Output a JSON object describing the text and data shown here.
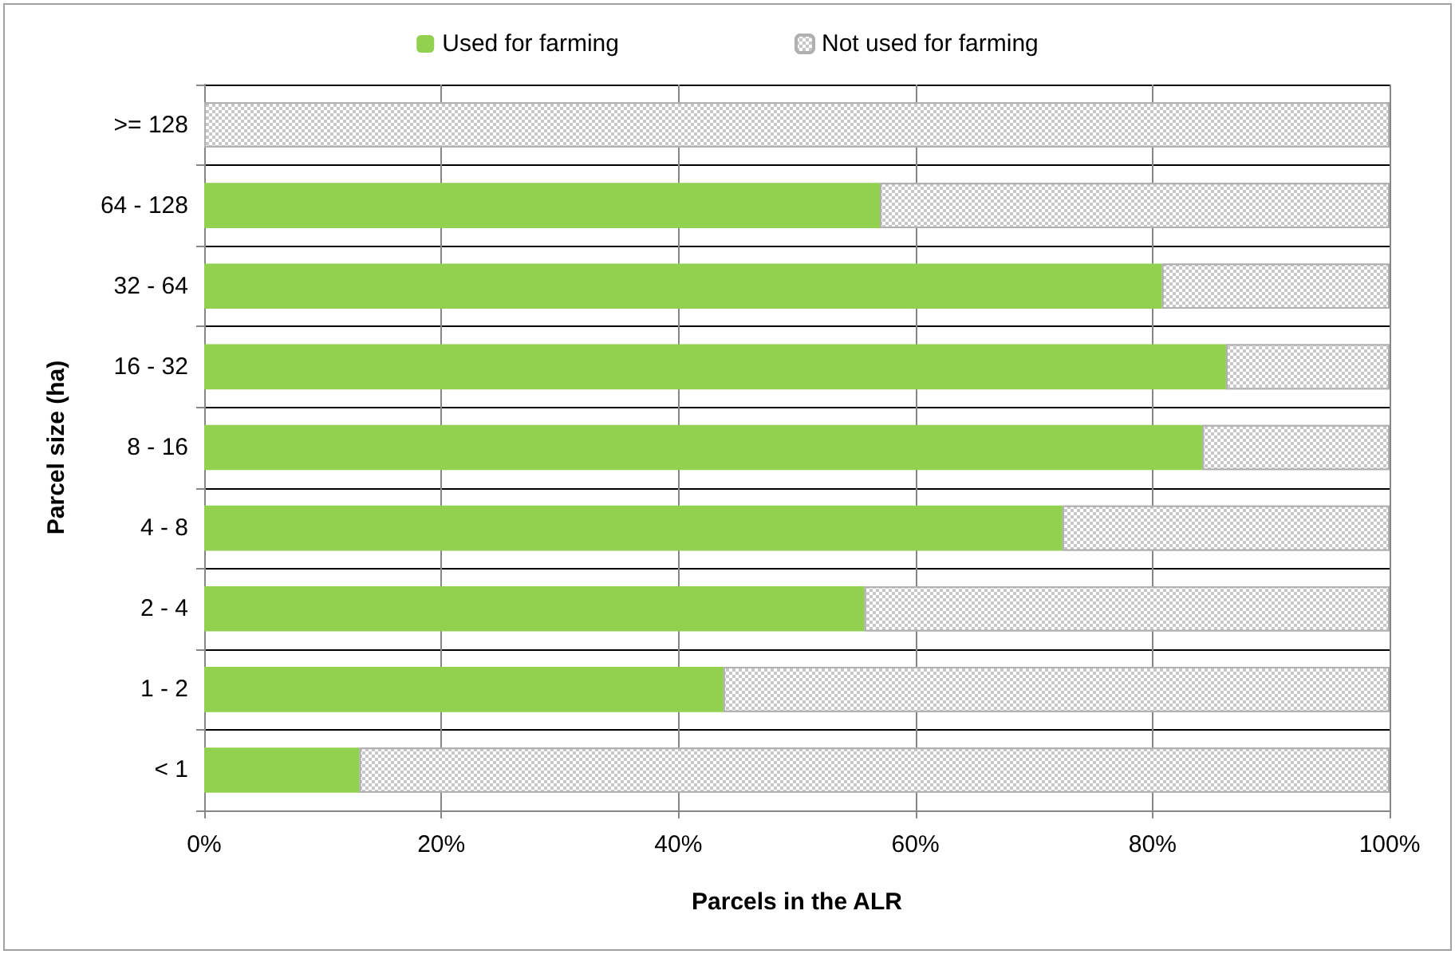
{
  "chart_data": {
    "type": "bar",
    "orientation": "horizontal",
    "stacked": true,
    "xlabel": "Parcels in the ALR",
    "ylabel": "Parcel size (ha)",
    "categories": [
      ">= 128",
      "64 - 128",
      "32 - 64",
      "16 - 32",
      "8 - 16",
      "4 - 8",
      "2 - 4",
      "1 - 2",
      "< 1"
    ],
    "series": [
      {
        "name": "Used for farming",
        "color": "#92d050",
        "values": [
          0,
          57.0,
          80.8,
          86.2,
          84.2,
          72.4,
          55.7,
          43.8,
          13.1
        ]
      },
      {
        "name": "Not used for farming",
        "color": "#c8c8c8",
        "values": [
          100,
          43.0,
          19.2,
          13.8,
          15.8,
          27.6,
          44.3,
          56.2,
          86.9
        ]
      }
    ],
    "xlim": [
      0,
      100
    ],
    "xticks": [
      {
        "value": 0,
        "label": "0%"
      },
      {
        "value": 20,
        "label": "20%"
      },
      {
        "value": 40,
        "label": "40%"
      },
      {
        "value": 60,
        "label": "60%"
      },
      {
        "value": 80,
        "label": "80%"
      },
      {
        "value": 100,
        "label": "100%"
      }
    ],
    "grid": true,
    "legend": "top"
  }
}
